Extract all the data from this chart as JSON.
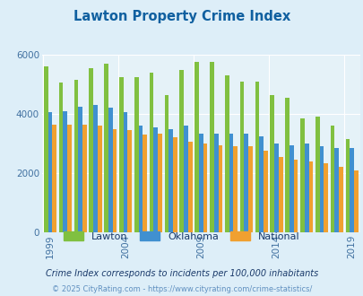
{
  "title": "Lawton Property Crime Index",
  "title_color": "#1060a0",
  "subtitle": "Crime Index corresponds to incidents per 100,000 inhabitants",
  "subtitle_color": "#1a3a6a",
  "footer": "© 2025 CityRating.com - https://www.cityrating.com/crime-statistics/",
  "footer_color": "#6090c0",
  "years": [
    1999,
    2000,
    2001,
    2002,
    2003,
    2004,
    2005,
    2006,
    2007,
    2008,
    2009,
    2010,
    2011,
    2012,
    2013,
    2014,
    2015,
    2016,
    2017,
    2018,
    2019
  ],
  "lawton": [
    5600,
    5050,
    5150,
    5550,
    5700,
    5250,
    5250,
    5400,
    4650,
    5500,
    5750,
    5750,
    5300,
    5100,
    5100,
    4650,
    4550,
    3850,
    3900,
    3600,
    3150
  ],
  "oklahoma": [
    4050,
    4100,
    4250,
    4300,
    4200,
    4050,
    3600,
    3550,
    3500,
    3600,
    3350,
    3350,
    3350,
    3350,
    3250,
    3000,
    2950,
    3000,
    2900,
    2850,
    2850
  ],
  "national": [
    3650,
    3650,
    3650,
    3600,
    3500,
    3450,
    3300,
    3350,
    3200,
    3050,
    3000,
    2950,
    2900,
    2900,
    2750,
    2550,
    2450,
    2400,
    2350,
    2200,
    2100
  ],
  "lawton_color": "#80c040",
  "oklahoma_color": "#4090d0",
  "national_color": "#f0a030",
  "bg_color": "#ddeef8",
  "plot_bg_color": "#e5f2f8",
  "ylim": [
    0,
    6000
  ],
  "bar_width": 0.28,
  "legend_labels": [
    "Lawton",
    "Oklahoma",
    "National"
  ],
  "xlabel_ticks": [
    1999,
    2004,
    2009,
    2014,
    2019
  ]
}
